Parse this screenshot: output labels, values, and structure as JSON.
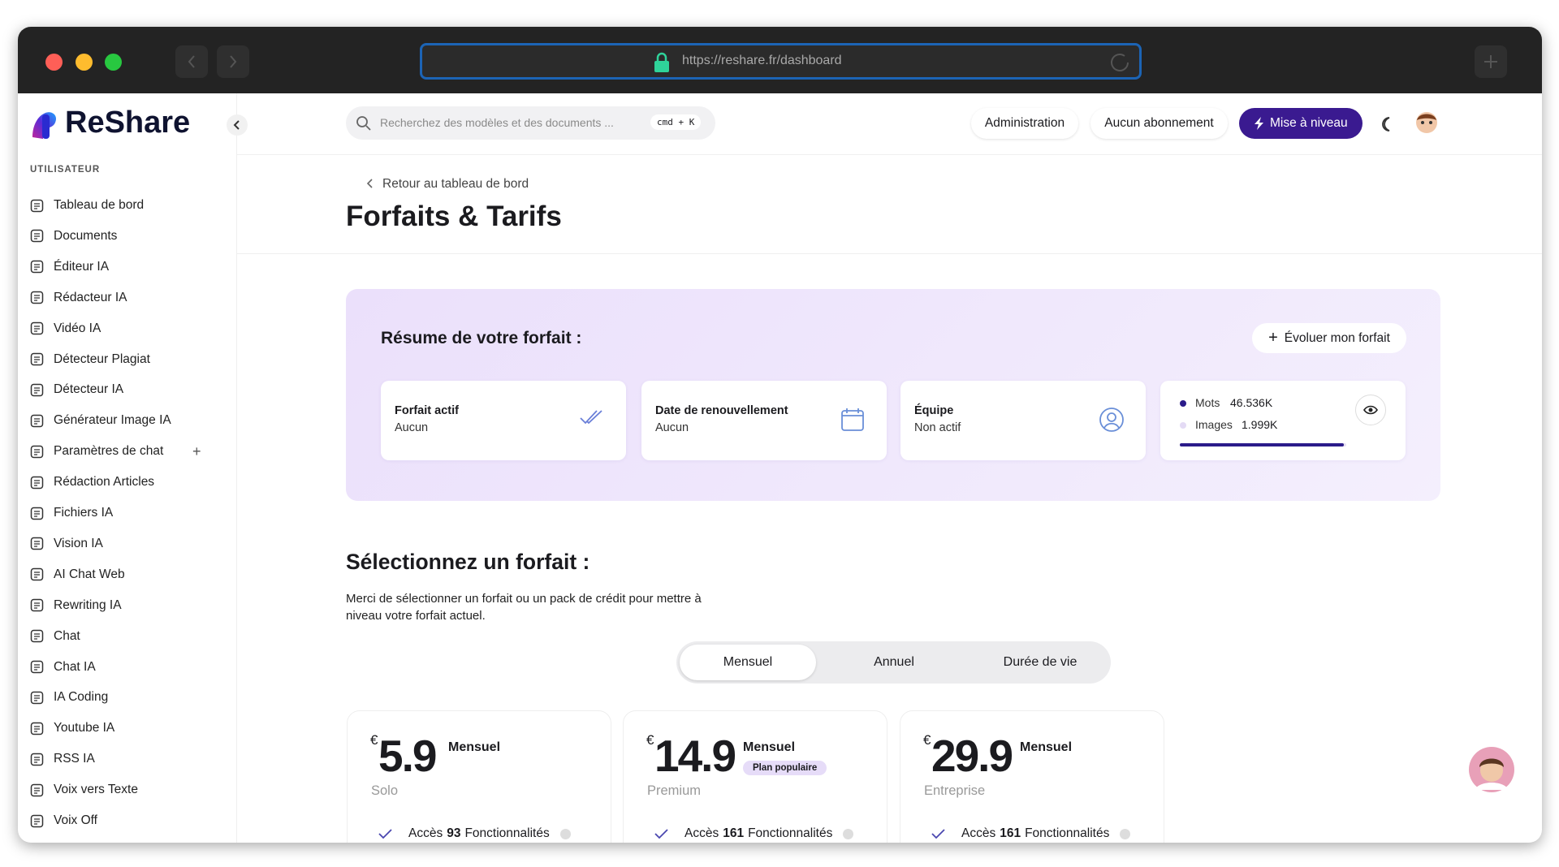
{
  "browser": {
    "url": "https://reshare.fr/dashboard"
  },
  "sidebar": {
    "brand": "ReShare",
    "section": "UTILISATEUR",
    "items": [
      "Tableau de bord",
      "Documents",
      "Éditeur IA",
      "Rédacteur IA",
      "Vidéo IA",
      "Détecteur Plagiat",
      "Détecteur IA",
      "Générateur Image IA",
      "Paramètres de chat",
      "Rédaction Articles",
      "Fichiers IA",
      "Vision IA",
      "AI Chat Web",
      "Rewriting IA",
      "Chat",
      "Chat IA",
      "IA Coding",
      "Youtube IA",
      "RSS IA",
      "Voix vers Texte",
      "Voix Off"
    ]
  },
  "header": {
    "search_placeholder": "Recherchez des modèles et des documents ...",
    "shortcut": "cmd + K",
    "buttons": [
      "Administration",
      "Aucun abonnement",
      "Mise à niveau"
    ]
  },
  "page": {
    "breadcrumb": "Retour au tableau de bord",
    "title": "Forfaits & Tarifs"
  },
  "summary": {
    "title": "Résume de votre forfait :",
    "action": "Évoluer mon forfait",
    "cards": [
      {
        "label": "Forfait actif",
        "value": "Aucun"
      },
      {
        "label": "Date de renouvellement",
        "value": "Aucun"
      },
      {
        "label": "Équipe",
        "value": "Non actif"
      }
    ],
    "usage": [
      {
        "label": "Mots",
        "value": "46.536K"
      },
      {
        "label": "Images",
        "value": "1.999K"
      }
    ]
  },
  "plans_section": {
    "title": "Sélectionnez un forfait :",
    "description": "Merci de sélectionner un forfait ou un pack de crédit pour mettre à niveau votre forfait actuel.",
    "tabs": [
      "Mensuel",
      "Annuel",
      "Durée de vie"
    ],
    "plans": [
      {
        "currency": "€",
        "price": "5.9",
        "period": "Mensuel",
        "name": "Solo",
        "feature_prefix": "Accès",
        "feature_count": "93",
        "feature_suffix": "Fonctionnalités"
      },
      {
        "currency": "€",
        "price": "14.9",
        "period": "Mensuel",
        "badge": "Plan populaire",
        "name": "Premium",
        "feature_prefix": "Accès",
        "feature_count": "161",
        "feature_suffix": "Fonctionnalités"
      },
      {
        "currency": "€",
        "price": "29.9",
        "period": "Mensuel",
        "name": "Entreprise",
        "feature_prefix": "Accès",
        "feature_count": "161",
        "feature_suffix": "Fonctionnalités"
      }
    ]
  }
}
